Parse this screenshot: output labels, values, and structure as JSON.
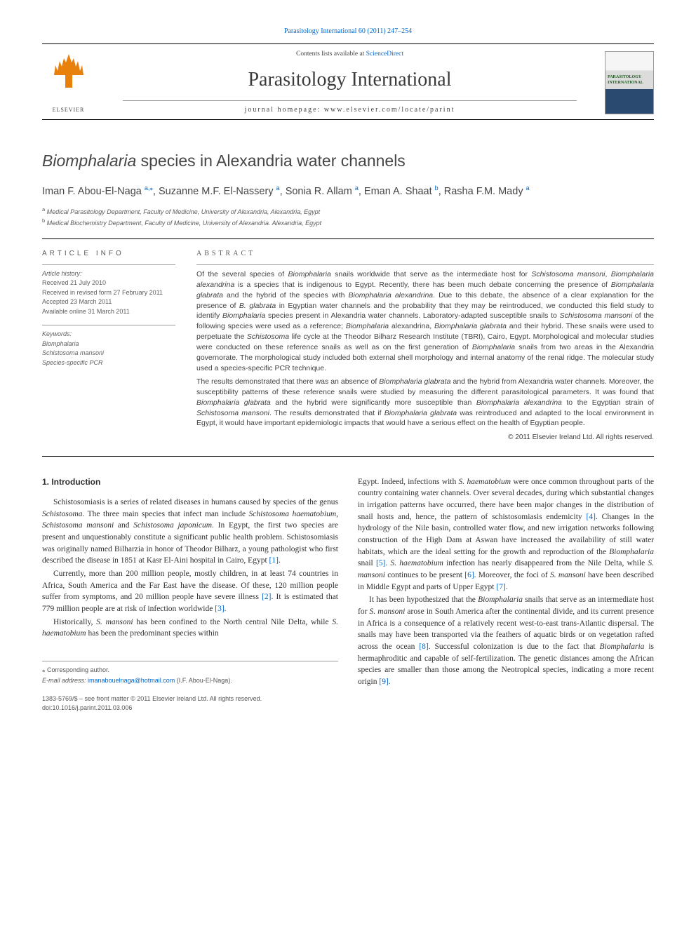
{
  "top_link": "Parasitology International 60 (2011) 247–254",
  "header": {
    "contents_prefix": "Contents lists available at ",
    "contents_link": "ScienceDirect",
    "journal_name": "Parasitology International",
    "homepage_prefix": "journal homepage: ",
    "homepage_url": "www.elsevier.com/locate/parint",
    "elsevier_label": "ELSEVIER",
    "cover_label": "PARASITOLOGY INTERNATIONAL"
  },
  "title_html": "<em>Biomphalaria</em> species in Alexandria water channels",
  "authors": [
    {
      "name": "Iman F. Abou-El-Naga",
      "aff": "a",
      "corr": true
    },
    {
      "name": "Suzanne M.F. El-Nassery",
      "aff": "a",
      "corr": false
    },
    {
      "name": "Sonia R. Allam",
      "aff": "a",
      "corr": false
    },
    {
      "name": "Eman A. Shaat",
      "aff": "b",
      "corr": false
    },
    {
      "name": "Rasha F.M. Mady",
      "aff": "a",
      "corr": false
    }
  ],
  "affiliations": [
    {
      "label": "a",
      "text": "Medical Parasitology Department, Faculty of Medicine, University of Alexandria, Alexandria, Egypt"
    },
    {
      "label": "b",
      "text": "Medical Biochemistry Department, Faculty of Medicine, University of Alexandria. Alexandria, Egypt"
    }
  ],
  "info": {
    "heading": "article info",
    "history_label": "Article history:",
    "history": [
      "Received 21 July 2010",
      "Received in revised form 27 February 2011",
      "Accepted 23 March 2011",
      "Available online 31 March 2011"
    ],
    "keywords_label": "Keywords:",
    "keywords": [
      "Biomphalaria",
      "Schistosoma mansoni",
      "Species-specific PCR"
    ]
  },
  "abstract": {
    "heading": "abstract",
    "p1_html": "Of the several species of <em>Biomphalaria</em> snails worldwide that serve as the intermediate host for <em>Schistosoma mansoni</em>, <em>Biomphalaria alexandrina</em> is a species that is indigenous to Egypt. Recently, there has been much debate concerning the presence of <em>Biomphalaria glabrata</em> and the hybrid of the species with <em>Biomphalaria alexandrina</em>. Due to this debate, the absence of a clear explanation for the presence of <em>B. glabrata</em> in Egyptian water channels and the probability that they may be reintroduced, we conducted this field study to identify <em>Biomphalaria</em> species present in Alexandria water channels. Laboratory-adapted susceptible snails to <em>Schistosoma mansoni</em> of the following species were used as a reference; <em>Biomphalaria</em> alexandrina, <em>Biomphalaria glabrata</em> and their hybrid. These snails were used to perpetuate the <em>Schistosoma</em> life cycle at the Theodor Bilharz Research Institute (TBRI), Cairo, Egypt. Morphological and molecular studies were conducted on these reference snails as well as on the first generation of <em>Biomphalaria</em> snails from two areas in the Alexandria governorate. The morphological study included both external shell morphology and internal anatomy of the renal ridge. The molecular study used a species-specific PCR technique.",
    "p2_html": "The results demonstrated that there was an absence of <em>Biomphalaria glabrata</em> and the hybrid from Alexandria water channels. Moreover, the susceptibility patterns of these reference snails were studied by measuring the different parasitological parameters. It was found that <em>Biomphalaria glabrata</em> and the hybrid were significantly more susceptible than <em>Biomphalaria alexandrina</em> to the Egyptian strain of <em>Schistosoma mansoni</em>. The results demonstrated that if <em>Biomphalaria glabrata</em> was reintroduced and adapted to the local environment in Egypt, it would have important epidemiologic impacts that would have a serious effect on the health of Egyptian people.",
    "copyright": "© 2011 Elsevier Ireland Ltd. All rights reserved."
  },
  "body": {
    "sec_heading": "1. Introduction",
    "left": [
      "Schistosomiasis is a series of related diseases in humans caused by species of the genus <em>Schistosoma</em>. The three main species that infect man include <em>Schistosoma haematobium</em>, <em>Schistosoma mansoni</em> and <em>Schistosoma japonicum</em>. In Egypt, the first two species are present and unquestionably constitute a significant public health problem. Schistosomiasis was originally named Bilharzia in honor of Theodor Bilharz, a young pathologist who first described the disease in 1851 at Kasr El-Aini hospital in Cairo, Egypt <span class='ref-link'>[1]</span>.",
      "Currently, more than 200 million people, mostly children, in at least 74 countries in Africa, South America and the Far East have the disease. Of these, 120 million people suffer from symptoms, and 20 million people have severe illness <span class='ref-link'>[2]</span>. It is estimated that 779 million people are at risk of infection worldwide <span class='ref-link'>[3]</span>.",
      "Historically, <em>S. mansoni</em> has been confined to the North central Nile Delta, while <em>S. haematobium</em> has been the predominant species within"
    ],
    "right": [
      "Egypt. Indeed, infections with <em>S. haematobium</em> were once common throughout parts of the country containing water channels. Over several decades, during which substantial changes in irrigation patterns have occurred, there have been major changes in the distribution of snail hosts and, hence, the pattern of schistosomiasis endemicity <span class='ref-link'>[4]</span>. Changes in the hydrology of the Nile basin, controlled water flow, and new irrigation networks following construction of the High Dam at Aswan have increased the availability of still water habitats, which are the ideal setting for the growth and reproduction of the <em>Biomphalaria</em> snail <span class='ref-link'>[5]</span>. <em>S. haematobium</em> infection has nearly disappeared from the Nile Delta, while <em>S. mansoni</em> continues to be present <span class='ref-link'>[6]</span>. Moreover, the foci of <em>S. mansoni</em> have been described in Middle Egypt and parts of Upper Egypt <span class='ref-link'>[7]</span>.",
      "It has been hypothesized that the <em>Biomphalaria</em> snails that serve as an intermediate host for <em>S. mansoni</em> arose in South America after the continental divide, and its current presence in Africa is a consequence of a relatively recent west-to-east trans-Atlantic dispersal. The snails may have been transported via the feathers of aquatic birds or on vegetation rafted across the ocean <span class='ref-link'>[8]</span>. Successful colonization is due to the fact that <em>Biomphalaria</em> is hermaphroditic and capable of self-fertilization. The genetic distances among the African species are smaller than those among the Neotropical species, indicating a more recent origin <span class='ref-link'>[9]</span>."
    ]
  },
  "footer": {
    "corr_label": "⁎ Corresponding author.",
    "email_label": "E-mail address:",
    "email": "imanabouelnaga@hotmail.com",
    "email_person": "(I.F. Abou-El-Naga).",
    "issn_line": "1383-5769/$ – see front matter © 2011 Elsevier Ireland Ltd. All rights reserved.",
    "doi_line": "doi:10.1016/j.parint.2011.03.006"
  },
  "colors": {
    "link": "#0066cc",
    "text": "#2a2a2a",
    "elsevier_orange": "#e8800c",
    "muted": "#5a5a5a"
  }
}
